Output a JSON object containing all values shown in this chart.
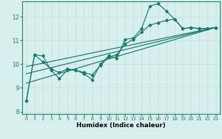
{
  "xlabel": "Humidex (Indice chaleur)",
  "background_color": "#d7f0ee",
  "grid_color": "#c8dedd",
  "line_color": "#1a7a6e",
  "xlim": [
    -0.5,
    23.5
  ],
  "ylim": [
    7.9,
    12.65
  ],
  "yticks": [
    8,
    9,
    10,
    11,
    12
  ],
  "xticks": [
    0,
    1,
    2,
    3,
    4,
    5,
    6,
    7,
    8,
    9,
    10,
    11,
    12,
    13,
    14,
    15,
    16,
    17,
    18,
    19,
    20,
    21,
    22,
    23
  ],
  "line1_x": [
    0,
    1,
    2,
    3,
    4,
    5,
    6,
    7,
    8,
    9,
    10,
    11,
    12,
    13,
    14,
    15,
    16,
    17,
    18,
    19,
    20,
    21,
    22,
    23
  ],
  "line1_y": [
    8.45,
    10.4,
    10.35,
    9.75,
    9.4,
    9.75,
    9.75,
    9.6,
    9.35,
    10.0,
    10.35,
    10.25,
    11.05,
    11.1,
    11.5,
    12.45,
    12.55,
    12.25,
    11.9,
    11.5,
    11.55,
    11.5,
    11.5,
    11.55
  ],
  "line2_x": [
    0,
    1,
    2,
    3,
    4,
    5,
    6,
    7,
    8,
    9,
    10,
    11,
    12,
    13,
    14,
    15,
    16,
    17,
    18,
    19,
    20,
    21,
    22,
    23
  ],
  "line2_y": [
    8.45,
    10.4,
    10.1,
    9.8,
    9.65,
    9.8,
    9.75,
    9.65,
    9.55,
    9.95,
    10.3,
    10.4,
    10.85,
    11.05,
    11.35,
    11.65,
    11.75,
    11.85,
    11.9,
    11.5,
    11.55,
    11.5,
    11.5,
    11.55
  ],
  "line3_x": [
    0,
    23
  ],
  "line3_y": [
    9.2,
    11.55
  ],
  "line4_x": [
    0,
    23
  ],
  "line4_y": [
    9.6,
    11.55
  ],
  "line5_x": [
    0,
    23
  ],
  "line5_y": [
    9.9,
    11.55
  ]
}
